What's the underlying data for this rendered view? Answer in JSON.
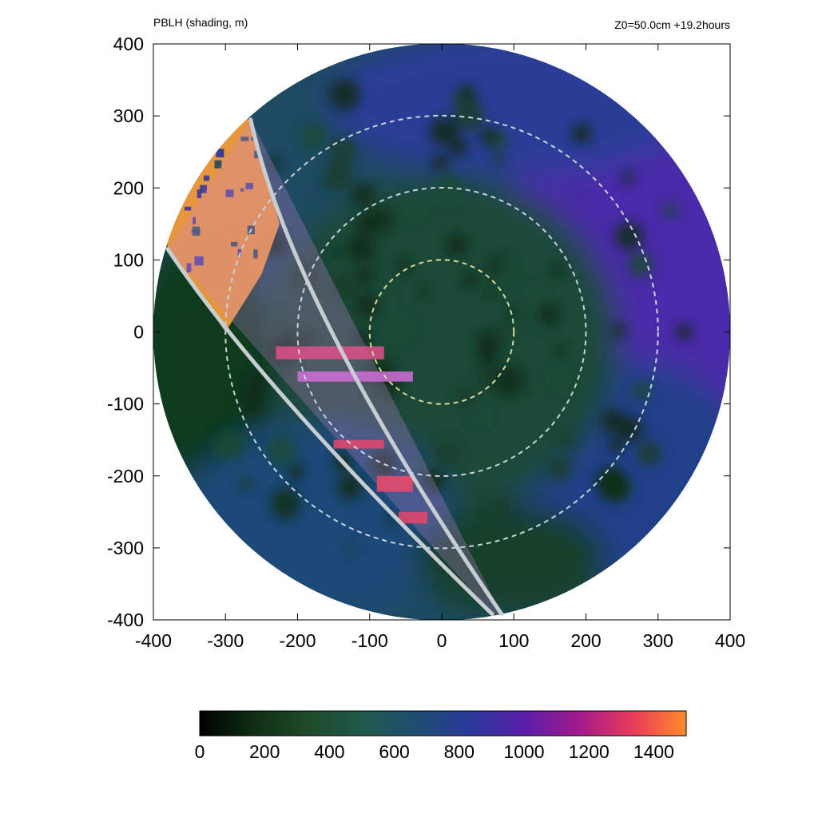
{
  "header": {
    "left_label": "PBLH (shading, m)",
    "right_label": "Z0=50.0cm  +19.2hours"
  },
  "chart_data": {
    "type": "heatmap",
    "title": "PBLH (shading, m)",
    "annotation": "Z0=50.0cm  +19.2hours",
    "xlabel": "",
    "ylabel": "",
    "xlim": [
      -400,
      400
    ],
    "ylim": [
      -400,
      400
    ],
    "x_ticks": [
      -400,
      -300,
      -200,
      -100,
      0,
      100,
      200,
      300,
      400
    ],
    "y_ticks": [
      400,
      300,
      200,
      100,
      0,
      -100,
      -200,
      -300,
      -400
    ],
    "domain_radius": 400,
    "reference_circles": [
      {
        "radius": 100,
        "color": "#d8d8a0"
      },
      {
        "radius": 200,
        "color": "#c8d4dc"
      },
      {
        "radius": 300,
        "color": "#c8d4dc"
      }
    ],
    "sector": {
      "near_edge_start": [
        -265,
        295
      ],
      "near_edge_end": [
        83,
        -392
      ],
      "far_edge_start": [
        -380,
        115
      ],
      "far_edge_end": [
        70,
        -392
      ],
      "color": "#c8cdd2"
    },
    "regions": [
      {
        "description": "warm orange PBLH band in upper-left sector",
        "value_m": 1450
      },
      {
        "description": "storm interior",
        "value_m": 450
      },
      {
        "description": "outer eastern region",
        "value_m": 1000
      },
      {
        "description": "outer western region",
        "value_m": 350
      }
    ],
    "colorbar": {
      "min": 0,
      "max": 1500,
      "ticks": [
        0,
        200,
        400,
        600,
        800,
        1000,
        1200,
        1400
      ],
      "tick_labels": [
        "0",
        "200",
        "400",
        "600",
        "800",
        "1000",
        "1200",
        "1400"
      ],
      "colors": [
        "#000000",
        "#0f2e14",
        "#1f4a2a",
        "#1e5a4a",
        "#1e4d72",
        "#2a3a9a",
        "#5a1fa8",
        "#a01a8c",
        "#e83a5a",
        "#ff8a2a"
      ]
    }
  }
}
